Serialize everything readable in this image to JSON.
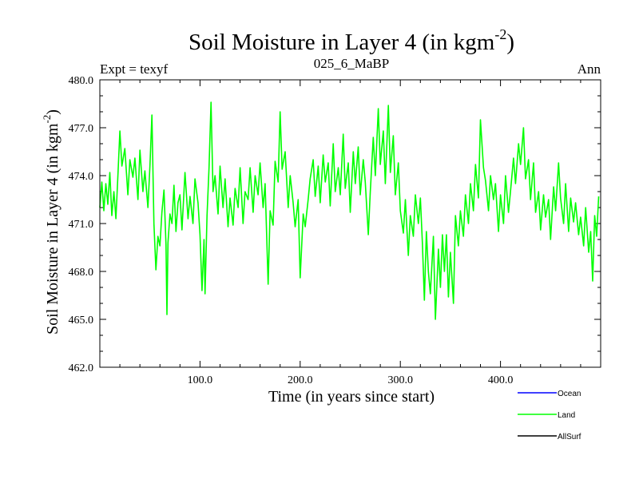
{
  "header": {
    "title_main": "Soil Moisture in Layer 4 (in kgm",
    "title_sup": "-2",
    "title_close": ")",
    "left_label": "Expt = texyf",
    "center_label": "025_6_MaBP",
    "right_label": "Ann"
  },
  "axes": {
    "xlabel": "Time (in years since start)",
    "ylabel_main": "Soil Moisture in Layer 4 (in kgm",
    "ylabel_sup": "-2",
    "ylabel_close": ")"
  },
  "legend": {
    "items": [
      {
        "label": "Ocean",
        "color": "#0000ff"
      },
      {
        "label": "Land",
        "color": "#00ff00"
      },
      {
        "label": "AllSurf",
        "color": "#000000"
      }
    ]
  },
  "chart_data": {
    "type": "line",
    "xlim": [
      0,
      500
    ],
    "ylim": [
      462,
      480
    ],
    "x_ticks": [
      {
        "value": 100,
        "label": "100.0"
      },
      {
        "value": 200,
        "label": "200.0"
      },
      {
        "value": 300,
        "label": "300.0"
      },
      {
        "value": 400,
        "label": "400.0"
      }
    ],
    "y_ticks": [
      {
        "value": 462,
        "label": "462.0"
      },
      {
        "value": 465,
        "label": "465.0"
      },
      {
        "value": 468,
        "label": "468.0"
      },
      {
        "value": 471,
        "label": "471.0"
      },
      {
        "value": 474,
        "label": "474.0"
      },
      {
        "value": 477,
        "label": "477.0"
      },
      {
        "value": 480,
        "label": "480.0"
      }
    ],
    "series": [
      {
        "name": "Land",
        "color": "#00ff00",
        "x": [
          0,
          2,
          4,
          6,
          8,
          10,
          12,
          14,
          16,
          18,
          20,
          22,
          25,
          28,
          30,
          33,
          35,
          38,
          40,
          43,
          45,
          48,
          50,
          52,
          54,
          56,
          58,
          60,
          62,
          64,
          66,
          67,
          68,
          70,
          72,
          74,
          76,
          78,
          80,
          82,
          85,
          88,
          90,
          93,
          95,
          98,
          100,
          102,
          104,
          105,
          107,
          109,
          111,
          113,
          115,
          118,
          120,
          123,
          125,
          128,
          130,
          133,
          135,
          138,
          140,
          143,
          145,
          148,
          150,
          153,
          155,
          158,
          160,
          163,
          165,
          168,
          170,
          173,
          175,
          178,
          180,
          182,
          185,
          188,
          190,
          193,
          195,
          198,
          200,
          203,
          205,
          208,
          210,
          213,
          215,
          218,
          220,
          223,
          225,
          228,
          230,
          233,
          235,
          238,
          240,
          243,
          245,
          248,
          250,
          253,
          255,
          258,
          260,
          263,
          265,
          268,
          270,
          273,
          275,
          278,
          280,
          283,
          285,
          288,
          290,
          293,
          295,
          298,
          300,
          303,
          305,
          308,
          310,
          313,
          315,
          318,
          320,
          322,
          324,
          326,
          328,
          330,
          333,
          335,
          338,
          340,
          342,
          344,
          346,
          348,
          350,
          353,
          355,
          358,
          360,
          363,
          365,
          368,
          370,
          373,
          375,
          378,
          380,
          383,
          385,
          388,
          390,
          393,
          395,
          398,
          400,
          403,
          405,
          408,
          410,
          413,
          415,
          418,
          420,
          423,
          425,
          428,
          430,
          433,
          435,
          438,
          440,
          443,
          445,
          448,
          450,
          453,
          455,
          458,
          460,
          463,
          465,
          468,
          470,
          473,
          475,
          478,
          480,
          483,
          485,
          488,
          490,
          492,
          494,
          496,
          498
        ],
        "y": [
          472.0,
          473.6,
          471.8,
          473.5,
          472.2,
          474.2,
          471.5,
          473.0,
          471.3,
          474.0,
          476.8,
          474.6,
          475.7,
          472.8,
          475.0,
          473.9,
          475.1,
          472.5,
          475.6,
          473.0,
          474.3,
          472.0,
          474.6,
          477.8,
          471.0,
          468.1,
          470.2,
          469.6,
          471.7,
          473.1,
          469.7,
          465.3,
          469.8,
          471.6,
          471.0,
          473.4,
          470.5,
          472.3,
          472.8,
          470.6,
          474.2,
          471.3,
          472.7,
          471.0,
          473.8,
          472.3,
          470.3,
          466.8,
          470.0,
          466.6,
          471.5,
          474.5,
          478.6,
          473.0,
          474.0,
          471.6,
          474.6,
          472.0,
          473.8,
          470.8,
          472.6,
          470.9,
          473.2,
          472.0,
          474.5,
          471.0,
          473.0,
          472.5,
          474.5,
          471.7,
          474.0,
          472.8,
          474.8,
          472.0,
          473.5,
          467.2,
          471.8,
          470.9,
          474.9,
          473.6,
          478.0,
          474.4,
          475.5,
          472.0,
          474.0,
          472.3,
          470.8,
          472.5,
          467.6,
          471.6,
          470.8,
          472.5,
          473.8,
          475.0,
          472.7,
          474.6,
          472.3,
          475.3,
          473.6,
          474.8,
          472.1,
          476.0,
          473.0,
          474.5,
          472.8,
          476.6,
          473.2,
          474.8,
          471.7,
          475.5,
          473.5,
          475.8,
          472.8,
          475.0,
          473.6,
          470.3,
          473.0,
          476.4,
          474.0,
          478.2,
          474.7,
          476.8,
          473.5,
          478.4,
          474.2,
          476.5,
          472.8,
          474.8,
          471.8,
          470.4,
          472.5,
          469.0,
          471.5,
          470.2,
          472.8,
          471.0,
          472.6,
          469.8,
          466.2,
          470.5,
          468.0,
          466.6,
          470.2,
          465.0,
          469.4,
          467.0,
          470.3,
          468.0,
          470.3,
          466.4,
          469.2,
          466.0,
          471.5,
          469.6,
          471.8,
          470.2,
          472.8,
          471.0,
          473.5,
          471.8,
          474.7,
          472.6,
          477.5,
          474.5,
          473.7,
          471.8,
          474.0,
          472.5,
          473.5,
          470.5,
          472.8,
          471.0,
          474.0,
          471.7,
          473.0,
          475.1,
          473.5,
          476.0,
          474.7,
          477.0,
          473.8,
          475.0,
          472.5,
          474.8,
          471.7,
          473.0,
          470.6,
          472.8,
          471.4,
          472.5,
          470.0,
          473.3,
          471.8,
          474.8,
          472.6,
          471.0,
          473.5,
          470.5,
          472.6,
          471.1,
          472.3,
          470.3,
          471.4,
          469.6,
          472.0,
          469.2,
          470.5,
          467.4,
          471.5,
          470.2,
          472.7
        ]
      }
    ]
  }
}
